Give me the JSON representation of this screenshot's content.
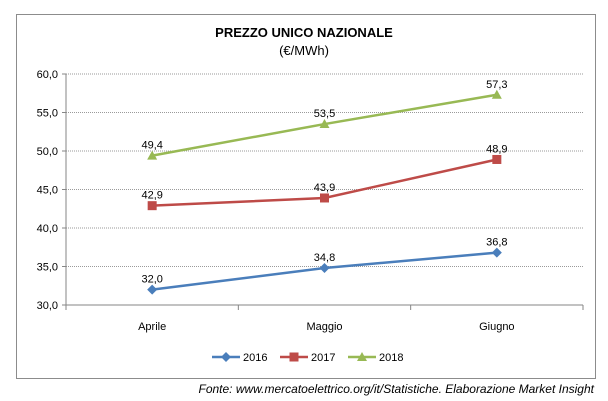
{
  "chart_data": {
    "type": "line",
    "title": "PREZZO UNICO NAZIONALE",
    "subtitle": "(€/MWh)",
    "categories": [
      "Aprile",
      "Maggio",
      "Giugno"
    ],
    "series": [
      {
        "name": "2016",
        "values": [
          32.0,
          34.8,
          36.8
        ],
        "labels": [
          "32,0",
          "34,8",
          "36,8"
        ],
        "color": "#4a7ebb",
        "marker": "diamond"
      },
      {
        "name": "2017",
        "values": [
          42.9,
          43.9,
          48.9
        ],
        "labels": [
          "42,9",
          "43,9",
          "48,9"
        ],
        "color": "#be4b48",
        "marker": "square"
      },
      {
        "name": "2018",
        "values": [
          49.4,
          53.5,
          57.3
        ],
        "labels": [
          "49,4",
          "53,5",
          "57,3"
        ],
        "color": "#98b954",
        "marker": "triangle"
      }
    ],
    "ylim": [
      30,
      60
    ],
    "yticks": [
      30,
      35,
      40,
      45,
      50,
      55,
      60
    ],
    "ytick_labels": [
      "30,0",
      "35,0",
      "40,0",
      "45,0",
      "50,0",
      "55,0",
      "60,0"
    ],
    "grid": true,
    "legend_position": "bottom",
    "xlabel": "",
    "ylabel": ""
  },
  "footer": "Fonte: www.mercatoelettrico.org/it/Statistiche. Elaborazione Market Insight"
}
